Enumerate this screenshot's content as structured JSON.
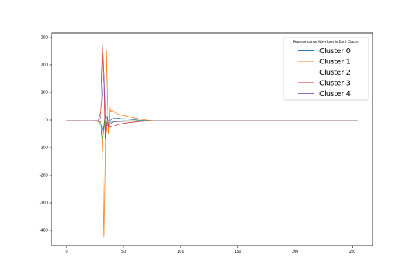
{
  "chart_data": {
    "type": "line",
    "title": "",
    "xlabel": "",
    "ylabel": "",
    "xlim": [
      -12.75,
      267.75
    ],
    "ylim": [
      -455,
      315
    ],
    "x_ticks": [
      0,
      50,
      100,
      150,
      200,
      250
    ],
    "y_ticks": [
      300,
      200,
      100,
      0,
      -100,
      -200,
      -300,
      -400
    ],
    "grid": false,
    "legend": {
      "title": "Representative Waveform in Each Cluster",
      "placement": "top-right"
    },
    "series": [
      {
        "name": "Cluster 0",
        "color": "#1f77b4",
        "points": [
          [
            0,
            -3
          ],
          [
            10,
            -2.5
          ],
          [
            20,
            -3
          ],
          [
            28,
            -4
          ],
          [
            30,
            -8
          ],
          [
            31,
            -20
          ],
          [
            32,
            -40
          ],
          [
            33,
            -20
          ],
          [
            34,
            15
          ],
          [
            35,
            10
          ],
          [
            36,
            2
          ],
          [
            38,
            -3
          ],
          [
            40,
            4
          ],
          [
            42,
            6
          ],
          [
            44,
            5
          ],
          [
            46,
            7
          ],
          [
            48,
            4
          ],
          [
            50,
            5
          ],
          [
            55,
            3
          ],
          [
            60,
            1
          ],
          [
            65,
            -1
          ],
          [
            70,
            -2
          ],
          [
            80,
            -3
          ],
          [
            100,
            -3
          ],
          [
            150,
            -3
          ],
          [
            200,
            -3
          ],
          [
            255,
            -3
          ]
        ]
      },
      {
        "name": "Cluster 1",
        "color": "#ff7f0e",
        "points": [
          [
            0,
            -3
          ],
          [
            10,
            -2
          ],
          [
            20,
            -3
          ],
          [
            28,
            -3
          ],
          [
            30,
            -6
          ],
          [
            31,
            -30
          ],
          [
            32,
            -120
          ],
          [
            33,
            -424
          ],
          [
            34,
            -150
          ],
          [
            35,
            255
          ],
          [
            36,
            40
          ],
          [
            37,
            -50
          ],
          [
            38,
            52
          ],
          [
            39,
            30
          ],
          [
            40,
            35
          ],
          [
            42,
            28
          ],
          [
            45,
            22
          ],
          [
            48,
            18
          ],
          [
            50,
            17
          ],
          [
            55,
            12
          ],
          [
            60,
            7
          ],
          [
            65,
            3
          ],
          [
            70,
            0
          ],
          [
            75,
            -2
          ],
          [
            80,
            -3
          ],
          [
            100,
            -3
          ],
          [
            150,
            -3
          ],
          [
            200,
            -3
          ],
          [
            255,
            -3
          ]
        ]
      },
      {
        "name": "Cluster 2",
        "color": "#2ca02c",
        "points": [
          [
            0,
            -3
          ],
          [
            10,
            -2.5
          ],
          [
            20,
            -3
          ],
          [
            28,
            -5
          ],
          [
            30,
            -15
          ],
          [
            31,
            -50
          ],
          [
            32,
            -70
          ],
          [
            33,
            -30
          ],
          [
            34,
            20
          ],
          [
            35,
            -10
          ],
          [
            36,
            -20
          ],
          [
            38,
            -15
          ],
          [
            40,
            -10
          ],
          [
            42,
            -5
          ],
          [
            45,
            -4
          ],
          [
            50,
            -3
          ],
          [
            60,
            -3
          ],
          [
            80,
            -3
          ],
          [
            100,
            -3
          ],
          [
            150,
            -3
          ],
          [
            200,
            -3
          ],
          [
            255,
            -3
          ]
        ]
      },
      {
        "name": "Cluster 3",
        "color": "#d62728",
        "points": [
          [
            0,
            -3
          ],
          [
            10,
            -2.5
          ],
          [
            20,
            -3
          ],
          [
            28,
            -2
          ],
          [
            30,
            30
          ],
          [
            31,
            150
          ],
          [
            32,
            275
          ],
          [
            33,
            160
          ],
          [
            34,
            -70
          ],
          [
            35,
            -40
          ],
          [
            36,
            15
          ],
          [
            37,
            -20
          ],
          [
            38,
            -25
          ],
          [
            40,
            -22
          ],
          [
            42,
            -20
          ],
          [
            45,
            -16
          ],
          [
            50,
            -12
          ],
          [
            55,
            -9
          ],
          [
            60,
            -7
          ],
          [
            65,
            -5
          ],
          [
            70,
            -4
          ],
          [
            80,
            -3
          ],
          [
            100,
            -3
          ],
          [
            150,
            -3
          ],
          [
            200,
            -3
          ],
          [
            255,
            -3
          ]
        ]
      },
      {
        "name": "Cluster 4",
        "color": "#9467bd",
        "points": [
          [
            0,
            -3
          ],
          [
            10,
            -2.5
          ],
          [
            20,
            -3
          ],
          [
            28,
            -3
          ],
          [
            30,
            10
          ],
          [
            31,
            60
          ],
          [
            32,
            120
          ],
          [
            33,
            170
          ],
          [
            34,
            40
          ],
          [
            35,
            -20
          ],
          [
            36,
            -10
          ],
          [
            38,
            -8
          ],
          [
            40,
            -7
          ],
          [
            45,
            -6
          ],
          [
            50,
            -5
          ],
          [
            60,
            -4
          ],
          [
            80,
            -3
          ],
          [
            100,
            -3
          ],
          [
            150,
            -3
          ],
          [
            200,
            -3
          ],
          [
            255,
            -3
          ]
        ]
      }
    ]
  }
}
